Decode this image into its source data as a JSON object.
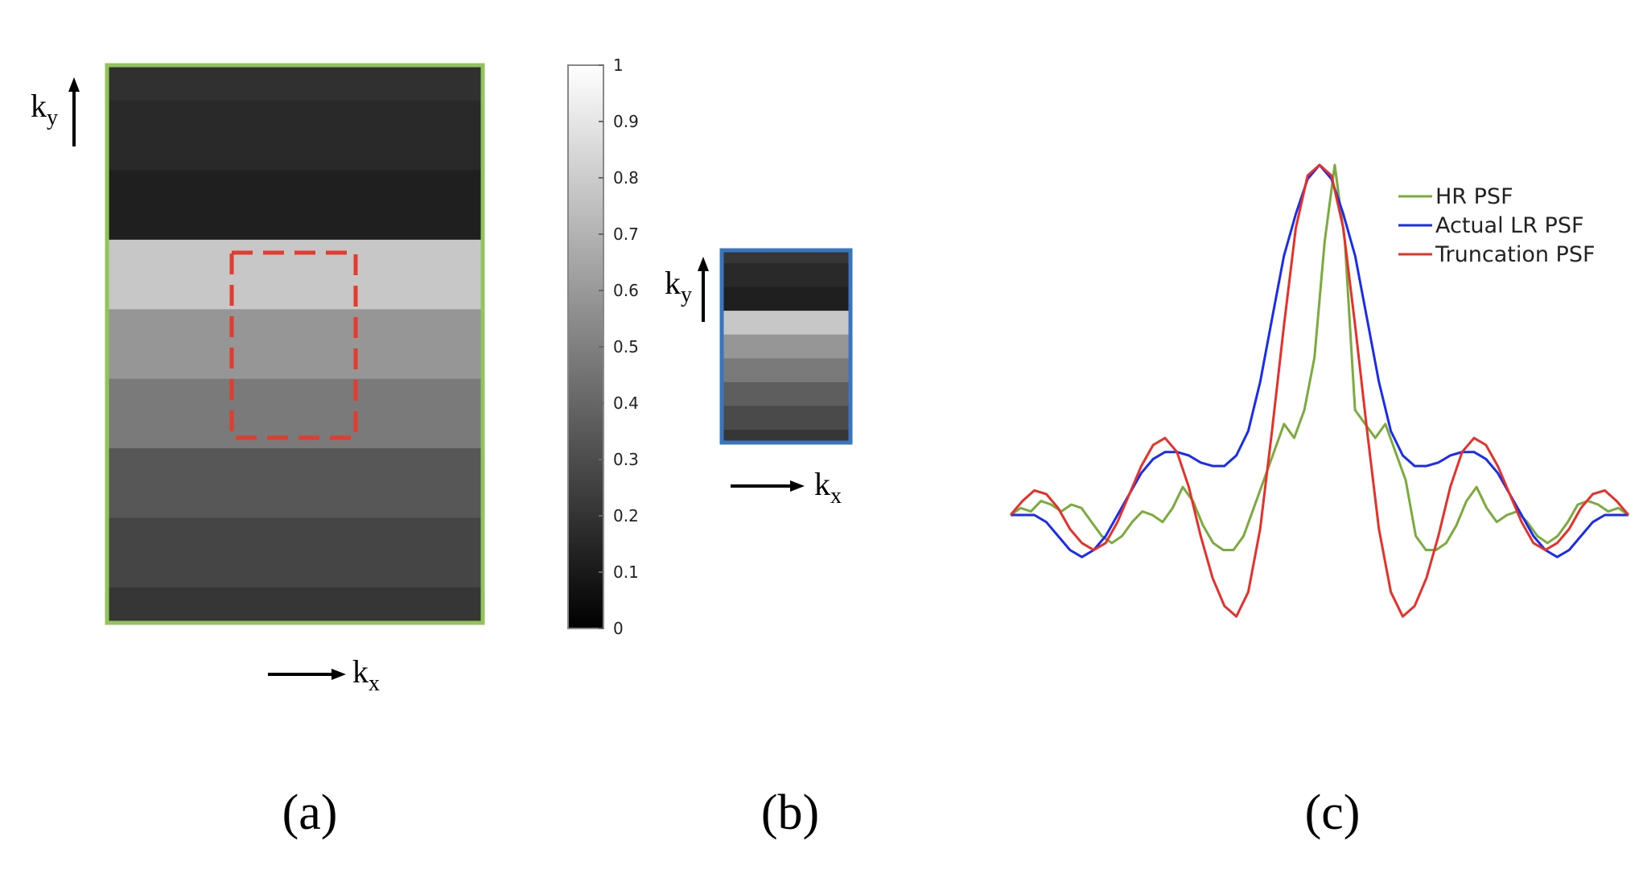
{
  "panel_a": {
    "ky_label": "k",
    "ky_sub": "y",
    "kx_label": "k",
    "kx_sub": "x",
    "caption": "(a)",
    "border_color": "#92c45b",
    "crop_box_color": "#e33b2e",
    "bands": [
      0.19,
      0.16,
      0.12,
      0.78,
      0.59,
      0.48,
      0.34,
      0.27,
      0.21
    ]
  },
  "colorbar": {
    "ticks": [
      "0",
      "0.1",
      "0.2",
      "0.3",
      "0.4",
      "0.5",
      "0.6",
      "0.7",
      "0.8",
      "0.9",
      "1"
    ],
    "range": [
      0,
      1
    ]
  },
  "panel_b": {
    "ky_label": "k",
    "ky_sub": "y",
    "kx_label": "k",
    "kx_sub": "x",
    "caption": "(b)",
    "border_color": "#3a76bd",
    "bands": [
      0.21,
      0.16,
      0.12,
      0.78,
      0.59,
      0.48,
      0.37,
      0.29,
      0.21
    ]
  },
  "panel_c": {
    "caption": "(c)"
  },
  "chart_data": {
    "type": "line",
    "title": "",
    "xlabel": "",
    "ylabel": "",
    "legend_position": "top-right",
    "grid": false,
    "axes_visible": false,
    "series": [
      {
        "name": "HR PSF",
        "color": "#7aab3c",
        "values": [
          0.0,
          0.02,
          0.01,
          0.04,
          0.03,
          0.01,
          0.03,
          0.02,
          -0.02,
          -0.06,
          -0.08,
          -0.06,
          -0.02,
          0.01,
          0.0,
          -0.02,
          0.02,
          0.08,
          0.04,
          -0.03,
          -0.08,
          -0.1,
          -0.1,
          -0.06,
          0.02,
          0.1,
          0.18,
          0.26,
          0.22,
          0.3,
          0.45,
          0.78,
          1.0,
          0.78,
          0.3,
          0.26,
          0.22,
          0.26,
          0.18,
          0.1,
          -0.06,
          -0.1,
          -0.1,
          -0.08,
          -0.03,
          0.04,
          0.08,
          0.02,
          -0.02,
          0.0,
          0.01,
          -0.02,
          -0.06,
          -0.08,
          -0.06,
          -0.02,
          0.03,
          0.04,
          0.03,
          0.01,
          0.02,
          0.0
        ]
      },
      {
        "name": "Actual LR PSF",
        "color": "#1a2cf0",
        "values": [
          0.0,
          0.0,
          0.0,
          -0.02,
          -0.06,
          -0.1,
          -0.12,
          -0.1,
          -0.06,
          0.0,
          0.06,
          0.12,
          0.16,
          0.18,
          0.18,
          0.17,
          0.15,
          0.14,
          0.14,
          0.17,
          0.24,
          0.38,
          0.56,
          0.74,
          0.86,
          0.96,
          1.0,
          0.96,
          0.86,
          0.74,
          0.56,
          0.38,
          0.24,
          0.17,
          0.14,
          0.14,
          0.15,
          0.17,
          0.18,
          0.18,
          0.16,
          0.12,
          0.06,
          0.0,
          -0.06,
          -0.1,
          -0.12,
          -0.1,
          -0.06,
          -0.02,
          0.0,
          0.0,
          0.0
        ]
      },
      {
        "name": "Truncation PSF",
        "color": "#e8302a",
        "values": [
          0.0,
          0.04,
          0.07,
          0.06,
          0.02,
          -0.04,
          -0.08,
          -0.1,
          -0.08,
          -0.02,
          0.06,
          0.14,
          0.2,
          0.22,
          0.18,
          0.08,
          -0.06,
          -0.18,
          -0.26,
          -0.29,
          -0.22,
          -0.04,
          0.24,
          0.54,
          0.82,
          0.97,
          1.0,
          0.97,
          0.82,
          0.54,
          0.24,
          -0.04,
          -0.22,
          -0.29,
          -0.26,
          -0.18,
          -0.06,
          0.08,
          0.18,
          0.22,
          0.2,
          0.14,
          0.06,
          -0.02,
          -0.08,
          -0.1,
          -0.08,
          -0.04,
          0.02,
          0.06,
          0.07,
          0.04,
          0.0
        ]
      }
    ]
  }
}
